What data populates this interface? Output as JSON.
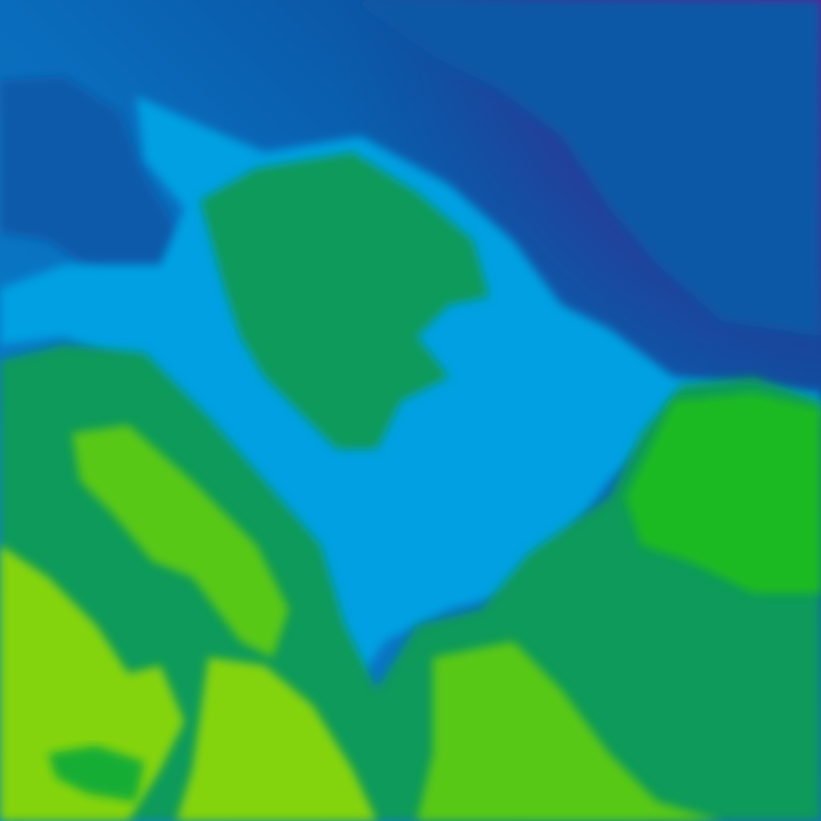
{
  "map": {
    "type": "temperature-raster-tile",
    "palette": {
      "purple": "#5a1c94",
      "deep_blue": "#0b4f9e",
      "mid_blue": "#0a6cbc",
      "blue": "#0787d0",
      "light_blue": "#06a0e2",
      "teal_green": "#0a9a5a",
      "green": "#12ad36",
      "bright_green": "#1bba24",
      "lime": "#58c814",
      "yellow_green": "#84d40c"
    }
  }
}
